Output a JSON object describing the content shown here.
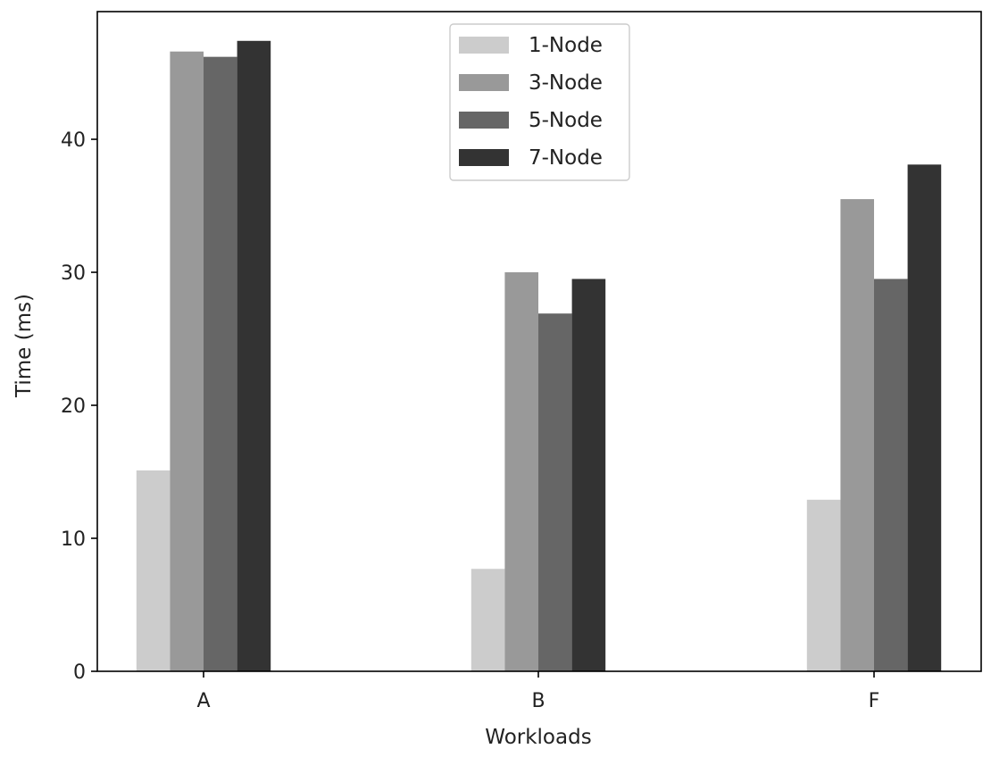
{
  "chart_data": {
    "type": "bar",
    "categories": [
      "A",
      "B",
      "F"
    ],
    "series": [
      {
        "name": "1-Node",
        "color": "#cccccc",
        "values": [
          15.1,
          7.7,
          12.9
        ]
      },
      {
        "name": "3-Node",
        "color": "#999999",
        "values": [
          46.6,
          30.0,
          35.5
        ]
      },
      {
        "name": "5-Node",
        "color": "#666666",
        "values": [
          46.2,
          26.9,
          29.5
        ]
      },
      {
        "name": "7-Node",
        "color": "#333333",
        "values": [
          47.4,
          29.5,
          38.1
        ]
      }
    ],
    "xlabel": "Workloads",
    "ylabel": "Time (ms)",
    "ylim": [
      0,
      49.6
    ],
    "yticks": [
      0,
      10,
      20,
      30,
      40
    ],
    "grid": false,
    "legend_position": "top-center"
  }
}
